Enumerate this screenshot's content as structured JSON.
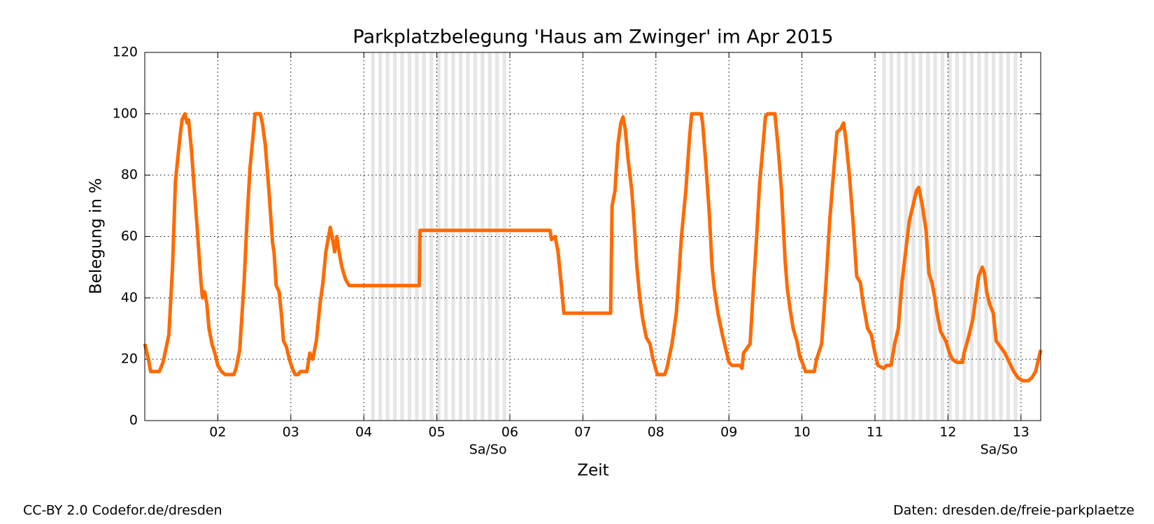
{
  "chart_data": {
    "type": "line",
    "title": "Parkplatzbelegung 'Haus am Zwinger' im Apr 2015",
    "xlabel": "Zeit",
    "ylabel": "Belegung in %",
    "x": [
      1.0,
      1.05,
      1.08,
      1.2,
      1.25,
      1.33,
      1.38,
      1.42,
      1.45,
      1.48,
      1.51,
      1.55,
      1.58,
      1.6,
      1.64,
      1.67,
      1.72,
      1.77,
      1.79,
      1.82,
      1.85,
      1.88,
      1.92,
      1.96,
      2.0,
      2.05,
      2.1,
      2.22,
      2.25,
      2.3,
      2.36,
      2.4,
      2.44,
      2.48,
      2.51,
      2.58,
      2.61,
      2.65,
      2.7,
      2.75,
      2.77,
      2.8,
      2.84,
      2.87,
      2.9,
      2.94,
      2.98,
      3.02,
      3.06,
      3.1,
      3.13,
      3.22,
      3.26,
      3.3,
      3.35,
      3.4,
      3.44,
      3.48,
      3.54,
      3.58,
      3.6,
      3.63,
      3.66,
      3.7,
      3.75,
      3.8,
      4.76,
      4.77,
      6.55,
      6.57,
      6.62,
      6.66,
      6.71,
      6.74,
      7.38,
      7.4,
      7.44,
      7.48,
      7.52,
      7.55,
      7.58,
      7.62,
      7.67,
      7.7,
      7.74,
      7.78,
      7.82,
      7.87,
      7.92,
      7.96,
      8.02,
      8.12,
      8.15,
      8.22,
      8.28,
      8.35,
      8.41,
      8.46,
      8.49,
      8.62,
      8.64,
      8.68,
      8.73,
      8.77,
      8.8,
      8.85,
      8.91,
      8.95,
      9.0,
      9.04,
      9.15,
      9.18,
      9.2,
      9.29,
      9.34,
      9.38,
      9.42,
      9.45,
      9.5,
      9.53,
      9.63,
      9.67,
      9.72,
      9.77,
      9.8,
      9.84,
      9.88,
      9.93,
      9.97,
      10.02,
      10.05,
      10.17,
      10.2,
      10.27,
      10.33,
      10.38,
      10.42,
      10.48,
      10.53,
      10.57,
      10.6,
      10.65,
      10.7,
      10.75,
      10.8,
      10.84,
      10.9,
      10.95,
      11.0,
      11.04,
      11.12,
      11.16,
      11.22,
      11.27,
      11.32,
      11.37,
      11.42,
      11.47,
      11.52,
      11.57,
      11.6,
      11.65,
      11.7,
      11.74,
      11.78,
      11.82,
      11.85,
      11.9,
      11.97,
      12.02,
      12.06,
      12.12,
      12.2,
      12.22,
      12.28,
      12.34,
      12.38,
      12.42,
      12.47,
      12.5,
      12.53,
      12.57,
      12.62,
      12.66,
      12.72,
      12.78,
      12.84,
      12.9,
      12.96,
      13.02,
      13.1,
      13.15,
      13.2,
      13.24,
      13.27
    ],
    "series": [
      {
        "color": "#ff6a00",
        "values": [
          25,
          20,
          16,
          16,
          19,
          28,
          50,
          78,
          85,
          92,
          98,
          100,
          97,
          98,
          88,
          78,
          62,
          45,
          40,
          42,
          38,
          30,
          25,
          22,
          18,
          16,
          15,
          15,
          17,
          23,
          45,
          65,
          82,
          92,
          100,
          100,
          97,
          90,
          75,
          58,
          55,
          44,
          42,
          35,
          26,
          24,
          20,
          17,
          15,
          15,
          16,
          16,
          22,
          20,
          26,
          38,
          45,
          55,
          63,
          58,
          55,
          60,
          55,
          50,
          46,
          44,
          44,
          62,
          62,
          59,
          60,
          55,
          43,
          35,
          35,
          70,
          75,
          90,
          97,
          99,
          95,
          85,
          75,
          65,
          50,
          40,
          33,
          27,
          25,
          20,
          15,
          15,
          17,
          25,
          35,
          60,
          75,
          92,
          100,
          100,
          97,
          85,
          68,
          50,
          43,
          35,
          28,
          24,
          19,
          18,
          18,
          17,
          22,
          25,
          45,
          60,
          77,
          85,
          99,
          100,
          100,
          90,
          75,
          52,
          43,
          36,
          30,
          26,
          21,
          18,
          16,
          16,
          20,
          25,
          45,
          65,
          77,
          94,
          95,
          97,
          92,
          80,
          65,
          47,
          45,
          38,
          30,
          28,
          22,
          18,
          17,
          18,
          18,
          25,
          30,
          45,
          55,
          65,
          70,
          75,
          76,
          70,
          62,
          48,
          45,
          40,
          35,
          29,
          26,
          22,
          20,
          19,
          19,
          22,
          27,
          33,
          40,
          47,
          50,
          48,
          42,
          38,
          35,
          26,
          24,
          22,
          19,
          16,
          14,
          13,
          13,
          14,
          16,
          20,
          23
        ]
      }
    ],
    "xlim": [
      1.0,
      13.27
    ],
    "xticks": [
      {
        "value": 2,
        "label": "02"
      },
      {
        "value": 3,
        "label": "03"
      },
      {
        "value": 4,
        "label": "04"
      },
      {
        "value": 5,
        "label": "05"
      },
      {
        "value": 6,
        "label": "06"
      },
      {
        "value": 7,
        "label": "07"
      },
      {
        "value": 8,
        "label": "08"
      },
      {
        "value": 9,
        "label": "09"
      },
      {
        "value": 10,
        "label": "10"
      },
      {
        "value": 11,
        "label": "11"
      },
      {
        "value": 12,
        "label": "12"
      },
      {
        "value": 13,
        "label": "13"
      }
    ],
    "ylim": [
      0,
      120
    ],
    "yticks": [
      0,
      20,
      40,
      60,
      80,
      100,
      120
    ],
    "grid": true,
    "shaded_ranges": [
      [
        4,
        6
      ],
      [
        11,
        13
      ]
    ],
    "annotations": [
      "Sa/So",
      "Sa/So"
    ]
  },
  "footer": {
    "left": "CC-BY 2.0 Codefor.de/dresden",
    "right": "Daten: dresden.de/freie-parkplaetze"
  }
}
